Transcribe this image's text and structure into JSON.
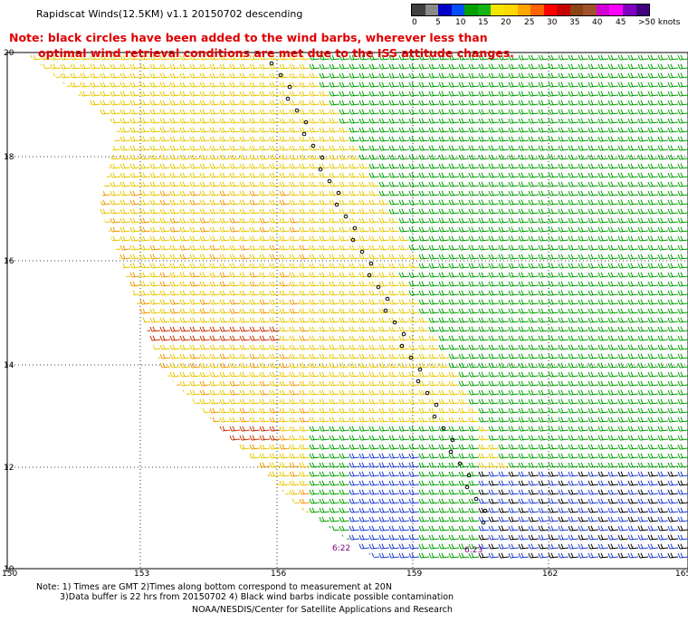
{
  "title": "Rapidscat Winds(12.5KM) v1.1 20150702 descending",
  "note_line1": "Note: black circles have been added to the wind barbs, wherever less than",
  "note_line2": "optimal wind retrieval conditions are met due to the ISS attitude changes.",
  "scale": {
    "unit": "knots",
    "labels": [
      "0",
      "5",
      "10",
      "15",
      "20",
      "25",
      "30",
      "35",
      "40",
      "45",
      ">50 knots"
    ],
    "colors": [
      "#404040",
      "#8a8a8a",
      "#0000c8",
      "#0050ff",
      "#00a000",
      "#14b414",
      "#f5e600",
      "#ffd700",
      "#ffa500",
      "#ff6400",
      "#ff0000",
      "#c80000",
      "#8b4513",
      "#a0522d",
      "#d200d2",
      "#ff00ff",
      "#8000c0",
      "#400080"
    ]
  },
  "lat_labels": [
    "20",
    "18",
    "16",
    "14",
    "12",
    "10"
  ],
  "lon_labels": [
    "150",
    "153",
    "156",
    "159",
    "162",
    "165"
  ],
  "time_labels": [
    "6:22",
    "6:23"
  ],
  "barb_palette": {
    "yellow": "#e6c800",
    "orange": "#f09a00",
    "red": "#c83200",
    "green": "#00a000",
    "blue": "#1e3cd2",
    "black": "#000000"
  },
  "footer_line1": "Note: 1) Times are GMT 2)Times along bottom correspond to measurement at 20N",
  "footer_line2": "3)Data buffer is 22 hrs from 20150702 4) Black wind barbs indicate possible contamination",
  "footer_line3": "NOAA/NESDIS/Center for Satellite Applications and Research"
}
